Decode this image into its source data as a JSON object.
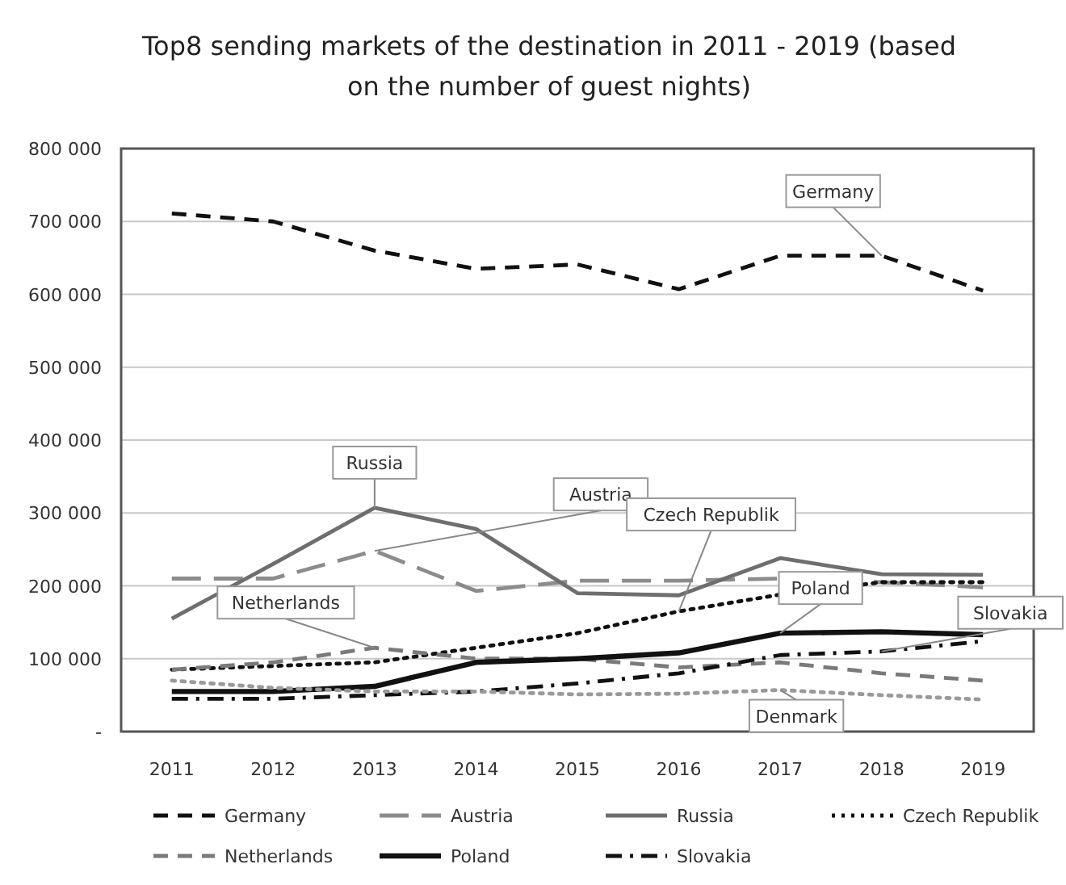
{
  "chart_data": {
    "type": "line",
    "title": "Top8 sending markets of the destination in 2011 - 2019 (based on the number of guest nights)",
    "categories": [
      "2011",
      "2012",
      "2013",
      "2014",
      "2015",
      "2016",
      "2017",
      "2018",
      "2019"
    ],
    "ylim": [
      0,
      800000
    ],
    "yticks": [
      {
        "value": 0,
        "label": "-"
      },
      {
        "value": 100000,
        "label": "100 000"
      },
      {
        "value": 200000,
        "label": "200 000"
      },
      {
        "value": 300000,
        "label": "300 000"
      },
      {
        "value": 400000,
        "label": "400 000"
      },
      {
        "value": 500000,
        "label": "500 000"
      },
      {
        "value": 600000,
        "label": "600 000"
      },
      {
        "value": 700000,
        "label": "700 000"
      },
      {
        "value": 800000,
        "label": "800 000"
      }
    ],
    "grid": "y",
    "legend": "bottom",
    "marker": "none",
    "series": [
      {
        "name": "Germany",
        "color": "#111111",
        "line_style": "dashed",
        "values": [
          711000,
          700000,
          660000,
          635000,
          641000,
          607000,
          653000,
          653000,
          605000
        ]
      },
      {
        "name": "Austria",
        "color": "#8c8c8c",
        "line_style": "longdash",
        "values": [
          210000,
          210000,
          248000,
          193000,
          207000,
          207000,
          210000,
          205000,
          198000
        ]
      },
      {
        "name": "Russia",
        "color": "#6e6e6e",
        "line_style": "solid",
        "values": [
          155000,
          230000,
          307000,
          278000,
          190000,
          187000,
          238000,
          216000,
          215000
        ]
      },
      {
        "name": "Czech Republik",
        "color": "#111111",
        "line_style": "dotted",
        "values": [
          85000,
          90000,
          95000,
          115000,
          135000,
          165000,
          188000,
          205000,
          205000
        ]
      },
      {
        "name": "Netherlands",
        "color": "#7a7a7a",
        "line_style": "dashed",
        "values": [
          85000,
          95000,
          115000,
          100000,
          100000,
          88000,
          95000,
          80000,
          70000
        ]
      },
      {
        "name": "Poland",
        "color": "#111111",
        "line_style": "solid",
        "values": [
          55000,
          55000,
          62000,
          95000,
          100000,
          108000,
          135000,
          137000,
          133000
        ]
      },
      {
        "name": "Slovakia",
        "color": "#111111",
        "line_style": "dashdot",
        "values": [
          45000,
          45000,
          50000,
          55000,
          66000,
          80000,
          105000,
          110000,
          124000
        ]
      },
      {
        "color": "#9a9a9a",
        "line_style": "dotted",
        "values": [
          70000,
          60000,
          55000,
          55000,
          51000,
          52000,
          57000,
          50000,
          44000
        ]
      }
    ],
    "annotations": [
      {
        "text": "Germany",
        "x": "2018",
        "y": 653000
      },
      {
        "text": "Russia",
        "x": "2013",
        "y": 307000
      },
      {
        "text": "Austria",
        "x": "2013",
        "y": 248000
      },
      {
        "text": "Netherlands",
        "x": "2013",
        "y": 115000
      },
      {
        "text": "Czech Republik",
        "x": "2016",
        "y": 165000
      },
      {
        "text": "Poland",
        "x": "2017",
        "y": 135000
      },
      {
        "text": "Slovakia",
        "x": "2018",
        "y": 110000
      },
      {
        "text": "Denmark",
        "x": "2017",
        "y": 57000
      }
    ]
  }
}
